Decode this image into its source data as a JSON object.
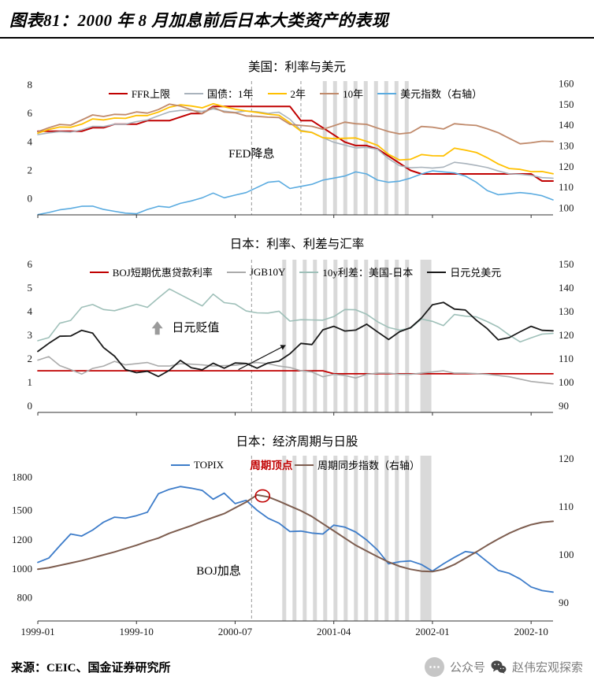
{
  "page": {
    "title": "图表81：2000 年 8 月加息前后日本大类资产的表现",
    "source": "来源：CEIC、国金证券研究所",
    "badge": {
      "prefix": "公众号",
      "name": "赵伟宏观探索"
    }
  },
  "chart_data": [
    {
      "type": "line",
      "title": "美国：利率与美元",
      "x_start": "1999-01",
      "x_end": "2002-12",
      "freq": "monthly",
      "x_ticks": {
        "months": [
          0,
          9,
          18,
          27,
          36,
          45
        ],
        "labels": [
          "1999-01",
          "1999-10",
          "2000-07",
          "2001-04",
          "2002-01",
          "2002-10"
        ]
      },
      "show_x_labels": false,
      "axes": {
        "left": {
          "ticks": [
            8,
            6,
            4,
            2,
            0
          ],
          "fracs": [
            0.03,
            0.2425,
            0.455,
            0.6675,
            0.88
          ]
        },
        "right": {
          "ticks": [
            160,
            150,
            140,
            130,
            120,
            110,
            100
          ],
          "fracs": [
            0.02,
            0.175,
            0.33,
            0.485,
            0.64,
            0.795,
            0.95
          ]
        }
      },
      "series": [
        {
          "name": "FFR上限",
          "color": "#C00000",
          "axis": "left",
          "width": 2,
          "values": [
            4.75,
            4.75,
            4.75,
            4.75,
            4.75,
            5,
            5,
            5.25,
            5.25,
            5.25,
            5.5,
            5.5,
            5.5,
            5.75,
            6,
            6,
            6.5,
            6.5,
            6.5,
            6.5,
            6.5,
            6.5,
            6.5,
            6.5,
            5.5,
            5.5,
            5,
            4.5,
            4,
            3.75,
            3.75,
            3.5,
            3,
            2.5,
            2,
            1.75,
            1.75,
            1.75,
            1.75,
            1.75,
            1.75,
            1.75,
            1.75,
            1.75,
            1.75,
            1.75,
            1.25,
            1.25
          ]
        },
        {
          "name": "国债：1年",
          "color": "#A9B3BC",
          "axis": "left",
          "width": 1.6,
          "values": [
            4.51,
            4.64,
            4.72,
            4.69,
            4.85,
            5.1,
            5.08,
            5.25,
            5.25,
            5.43,
            5.55,
            5.84,
            6.12,
            6.22,
            6.22,
            6.15,
            6.33,
            6.17,
            6.08,
            6.18,
            6.13,
            6.01,
            6.09,
            5.6,
            4.81,
            4.68,
            4.3,
            3.98,
            3.78,
            3.58,
            3.62,
            3.47,
            2.82,
            2.33,
            2.18,
            2.22,
            2.16,
            2.23,
            2.57,
            2.48,
            2.35,
            2.2,
            1.96,
            1.76,
            1.72,
            1.65,
            1.49,
            1.45
          ]
        },
        {
          "name": "2年",
          "color": "#FFC000",
          "axis": "left",
          "width": 1.8,
          "values": [
            4.62,
            4.88,
            5.05,
            5.03,
            5.25,
            5.62,
            5.55,
            5.68,
            5.66,
            5.86,
            5.86,
            6.1,
            6.44,
            6.61,
            6.53,
            6.4,
            6.69,
            6.48,
            6.3,
            6.18,
            6.08,
            5.95,
            5.88,
            5.35,
            4.76,
            4.66,
            4.3,
            4.23,
            4.26,
            4.28,
            4.04,
            3.76,
            3.12,
            2.73,
            2.78,
            3.11,
            3.03,
            3.02,
            3.56,
            3.42,
            3.26,
            2.89,
            2.45,
            2.13,
            2.07,
            1.91,
            1.92,
            1.76
          ]
        },
        {
          "name": "10年",
          "color": "#C08A6B",
          "axis": "left",
          "width": 1.8,
          "values": [
            4.72,
            5.0,
            5.23,
            5.18,
            5.54,
            5.9,
            5.79,
            5.94,
            5.92,
            6.11,
            6.03,
            6.28,
            6.66,
            6.52,
            6.26,
            5.99,
            6.44,
            6.1,
            6.05,
            5.83,
            5.8,
            5.74,
            5.72,
            5.24,
            5.16,
            5.1,
            4.89,
            5.14,
            5.39,
            5.28,
            5.24,
            4.97,
            4.73,
            4.57,
            4.65,
            5.09,
            5.04,
            4.91,
            5.28,
            5.21,
            5.16,
            4.93,
            4.65,
            4.26,
            3.87,
            3.94,
            4.05,
            4.03
          ]
        },
        {
          "name": "美元指数（右轴）",
          "color": "#5AABE0",
          "axis": "right",
          "width": 1.6,
          "values": [
            96.9,
            97.9,
            99.2,
            99.9,
            100.9,
            101.0,
            99.4,
            98.5,
            97.6,
            97.3,
            99.4,
            100.9,
            100.4,
            102.3,
            103.5,
            105.0,
            107.3,
            105.0,
            106.3,
            107.5,
            110.0,
            112.5,
            113.0,
            109.5,
            110.5,
            111.5,
            113.5,
            114.5,
            115.5,
            117.5,
            116.5,
            113.5,
            112.5,
            113.0,
            114.5,
            116.5,
            118.0,
            117.5,
            117.0,
            115.5,
            112.5,
            108.5,
            106.5,
            107.0,
            107.5,
            107.0,
            106.0,
            104.0
          ]
        }
      ],
      "bands": [
        {
          "from": 26,
          "to": 34,
          "style": "stripes"
        }
      ],
      "dashed_months": [
        19.5,
        24
      ],
      "annotations": [
        {
          "type": "text",
          "text": "FED降息",
          "month": 19.5,
          "yfrac": 0.57,
          "color": "#000000",
          "size": 15
        }
      ]
    },
    {
      "type": "line",
      "title": "日本：利率、利差与汇率",
      "x_start": "1999-01",
      "x_end": "2002-12",
      "freq": "monthly",
      "x_ticks": {
        "months": [
          0,
          9,
          18,
          27,
          36,
          45
        ],
        "labels": [
          "1999-01",
          "1999-10",
          "2000-07",
          "2001-04",
          "2002-01",
          "2002-10"
        ]
      },
      "show_x_labels": false,
      "axes": {
        "left": {
          "ticks": [
            6,
            5,
            4,
            3,
            2,
            1,
            0
          ],
          "fracs": [
            0.03,
            0.185,
            0.34,
            0.495,
            0.65,
            0.805,
            0.96
          ]
        },
        "right": {
          "ticks": [
            150,
            140,
            130,
            120,
            110,
            100,
            90
          ],
          "fracs": [
            0.03,
            0.185,
            0.34,
            0.495,
            0.65,
            0.805,
            0.96
          ]
        }
      },
      "series": [
        {
          "name": "BOJ短期优惠贷款利率",
          "color": "#C00000",
          "axis": "left",
          "width": 1.8,
          "values": [
            1.5,
            1.5,
            1.5,
            1.5,
            1.5,
            1.5,
            1.5,
            1.5,
            1.5,
            1.5,
            1.5,
            1.5,
            1.5,
            1.5,
            1.5,
            1.5,
            1.5,
            1.5,
            1.5,
            1.5,
            1.5,
            1.5,
            1.5,
            1.5,
            1.5,
            1.5,
            1.5,
            1.375,
            1.375,
            1.375,
            1.375,
            1.375,
            1.375,
            1.375,
            1.375,
            1.375,
            1.375,
            1.375,
            1.375,
            1.375,
            1.375,
            1.375,
            1.375,
            1.375,
            1.375,
            1.375,
            1.375,
            1.375
          ]
        },
        {
          "name": "JGB10Y",
          "color": "#ABABAB",
          "axis": "left",
          "width": 1.6,
          "values": [
            1.95,
            2.1,
            1.72,
            1.55,
            1.36,
            1.6,
            1.7,
            1.9,
            1.75,
            1.8,
            1.85,
            1.7,
            1.7,
            1.8,
            1.78,
            1.75,
            1.7,
            1.72,
            1.73,
            1.8,
            1.85,
            1.8,
            1.7,
            1.64,
            1.5,
            1.45,
            1.25,
            1.35,
            1.3,
            1.2,
            1.35,
            1.4,
            1.4,
            1.35,
            1.35,
            1.4,
            1.45,
            1.5,
            1.4,
            1.4,
            1.38,
            1.35,
            1.3,
            1.25,
            1.15,
            1.05,
            1.0,
            0.95
          ]
        },
        {
          "name": "10y利差：美国-日本",
          "color": "#9FC0B9",
          "axis": "left",
          "width": 1.6,
          "values": [
            2.77,
            2.9,
            3.51,
            3.63,
            4.18,
            4.3,
            4.09,
            4.04,
            4.17,
            4.31,
            4.18,
            4.58,
            4.96,
            4.72,
            4.48,
            4.24,
            4.74,
            4.38,
            4.32,
            4.03,
            3.95,
            3.94,
            4.02,
            3.6,
            3.66,
            3.65,
            3.64,
            3.79,
            4.09,
            4.08,
            3.89,
            3.57,
            3.33,
            3.22,
            3.3,
            3.69,
            3.59,
            3.41,
            3.88,
            3.81,
            3.78,
            3.58,
            3.35,
            3.01,
            2.72,
            2.89,
            3.05,
            3.08
          ]
        },
        {
          "name": "日元兑美元",
          "color": "#1A1A1A",
          "axis": "right",
          "width": 1.8,
          "values": [
            113.2,
            116.6,
            119.6,
            119.7,
            122.1,
            120.9,
            114.8,
            111.2,
            105.5,
            104.2,
            104.8,
            102.6,
            105.2,
            109.4,
            106.3,
            105.4,
            108.2,
            106.1,
            108.3,
            108.1,
            106.1,
            108.3,
            109.1,
            112.2,
            116.6,
            116.1,
            122.3,
            123.8,
            121.8,
            122.2,
            124.7,
            121.4,
            118.2,
            121.5,
            123.2,
            127.3,
            132.9,
            133.9,
            131.1,
            130.7,
            126.4,
            122.8,
            118.1,
            119.0,
            121.5,
            123.8,
            122.1,
            121.9
          ]
        }
      ],
      "bands": [
        {
          "from": 22.3,
          "to": 34.4,
          "style": "stripes"
        },
        {
          "from": 34.9,
          "to": 35.9,
          "style": "solid"
        }
      ],
      "dashed_months": [
        19.5
      ],
      "annotations": [
        {
          "type": "up-arrow",
          "month": 10.9,
          "yfrac": 0.45
        },
        {
          "type": "text",
          "text": "日元贬值",
          "month": 14.4,
          "yfrac": 0.47,
          "color": "#000000",
          "size": 15
        },
        {
          "type": "arrow",
          "from": {
            "month": 18.3,
            "yfrac": 0.72
          },
          "to": {
            "month": 22.6,
            "yfrac": 0.56
          }
        }
      ]
    },
    {
      "type": "line",
      "title": "日本：经济周期与日股",
      "x_start": "1999-01",
      "x_end": "2002-12",
      "freq": "monthly",
      "x_ticks": {
        "months": [
          0,
          9,
          18,
          27,
          36,
          45
        ],
        "labels": [
          "1999-01",
          "1999-10",
          "2000-07",
          "2001-04",
          "2002-01",
          "2002-10"
        ]
      },
      "show_x_labels": true,
      "axes": {
        "left": {
          "ticks": [
            1800,
            1500,
            1200,
            1000,
            800
          ],
          "fracs": [
            0.13,
            0.33,
            0.51,
            0.685,
            0.86
          ]
        },
        "right": {
          "ticks": [
            120,
            110,
            100,
            90
          ],
          "fracs": [
            0.02,
            0.31,
            0.6,
            0.89
          ]
        }
      },
      "series": [
        {
          "name": "TOPIX",
          "color": "#3D7CC9",
          "axis": "left",
          "width": 1.8,
          "values": [
            1045,
            1075,
            1160,
            1260,
            1240,
            1300,
            1380,
            1430,
            1420,
            1445,
            1480,
            1650,
            1690,
            1715,
            1700,
            1680,
            1600,
            1655,
            1560,
            1590,
            1500,
            1420,
            1370,
            1285,
            1290,
            1270,
            1260,
            1350,
            1330,
            1280,
            1200,
            1130,
            1035,
            1050,
            1055,
            1030,
            985,
            1035,
            1080,
            1120,
            1110,
            1050,
            990,
            970,
            930,
            875,
            850,
            840
          ]
        },
        {
          "name": "周期同步指数（右轴）",
          "color": "#7D5D4F",
          "axis": "right",
          "width": 2,
          "values": [
            97.0,
            97.3,
            97.8,
            98.3,
            98.8,
            99.4,
            100.0,
            100.6,
            101.3,
            102.0,
            102.8,
            103.5,
            104.5,
            105.3,
            106.1,
            107.0,
            107.8,
            108.6,
            109.8,
            111.0,
            112.5,
            112.1,
            111.2,
            110.2,
            109.2,
            108.0,
            106.5,
            105.0,
            103.5,
            102.0,
            100.8,
            99.6,
            98.5,
            97.6,
            97.0,
            96.6,
            96.5,
            97.0,
            98.0,
            99.3,
            100.6,
            102.0,
            103.3,
            104.5,
            105.5,
            106.3,
            106.8,
            107.0
          ]
        }
      ],
      "bands": [
        {
          "from": 22.3,
          "to": 34.4,
          "style": "stripes"
        },
        {
          "from": 34.9,
          "to": 35.9,
          "style": "solid"
        }
      ],
      "dashed_months": [
        19.5
      ],
      "annotations": [
        {
          "type": "text",
          "text": "周期顶点",
          "month": 21.3,
          "yfrac": 0.08,
          "color": "#C00000",
          "size": 13.5,
          "bold": true
        },
        {
          "type": "circle",
          "month": 20.5,
          "axis": "right",
          "value": 112.3,
          "r": 9,
          "color": "#C00000"
        },
        {
          "type": "text",
          "text": "BOJ加息",
          "month": 16.5,
          "yfrac": 0.72,
          "color": "#000000",
          "size": 15
        }
      ]
    }
  ]
}
